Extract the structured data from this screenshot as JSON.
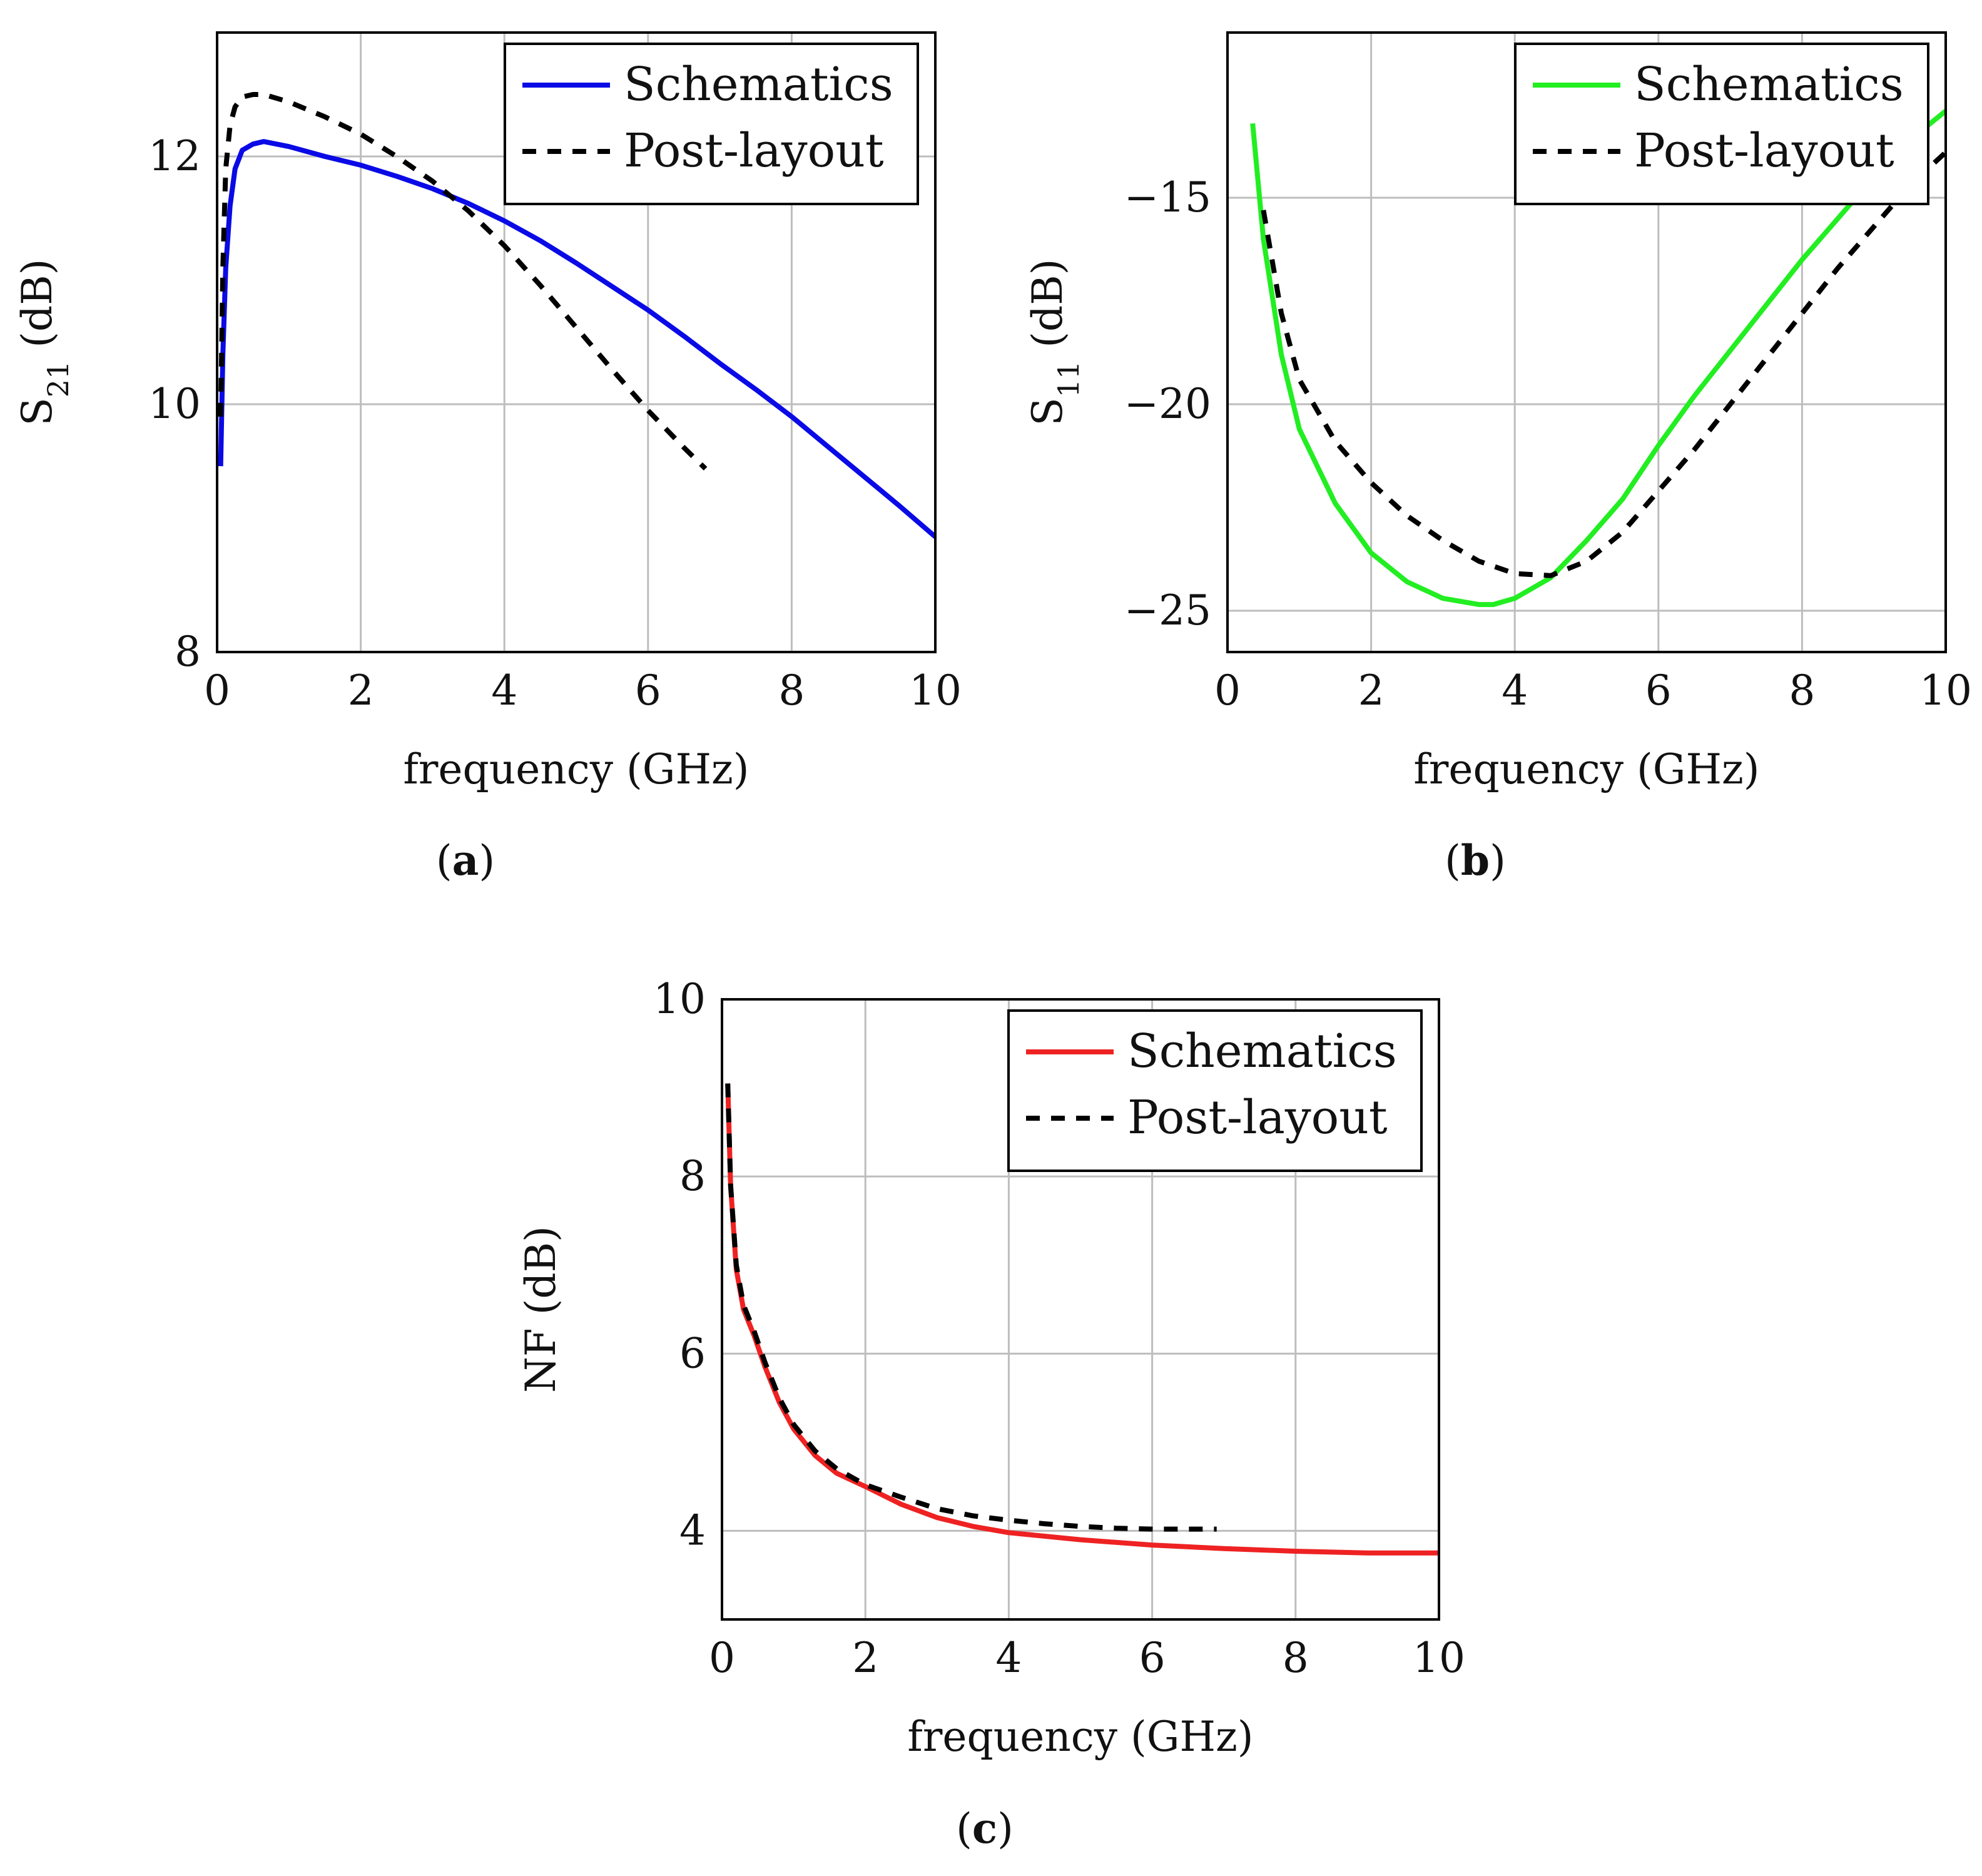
{
  "chart_data": [
    {
      "id": "a",
      "type": "line",
      "caption": "a",
      "xlabel": "frequency (GHz)",
      "ylabel": "S",
      "ylabel_sub": "21",
      "ylabel_unit": "(dB)",
      "xlim": [
        0,
        10
      ],
      "ylim": [
        8,
        13
      ],
      "xticks": [
        0,
        2,
        4,
        6,
        8,
        10
      ],
      "yticks": [
        8,
        10,
        12
      ],
      "grid": true,
      "legend_position": "top-right",
      "series": [
        {
          "name": "Schematics",
          "color": "#0a0ae6",
          "dash": "solid",
          "x": [
            0.05,
            0.08,
            0.12,
            0.18,
            0.25,
            0.35,
            0.5,
            0.65,
            1.0,
            1.5,
            2.0,
            2.5,
            3.0,
            3.5,
            4.0,
            4.5,
            5.0,
            5.5,
            6.0,
            6.5,
            7.0,
            7.5,
            8.0,
            8.5,
            9.0,
            9.5,
            10.0
          ],
          "y": [
            9.5,
            10.4,
            11.1,
            11.6,
            11.9,
            12.05,
            12.1,
            12.12,
            12.08,
            12.0,
            11.93,
            11.84,
            11.74,
            11.62,
            11.48,
            11.32,
            11.14,
            10.95,
            10.76,
            10.55,
            10.33,
            10.12,
            9.9,
            9.66,
            9.42,
            9.18,
            8.93
          ]
        },
        {
          "name": "Post-layout",
          "color": "#000000",
          "dash": "dashed",
          "x": [
            0.05,
            0.08,
            0.12,
            0.18,
            0.25,
            0.35,
            0.5,
            0.65,
            1.0,
            1.5,
            2.0,
            2.5,
            3.0,
            3.5,
            4.0,
            4.5,
            5.0,
            5.5,
            6.0,
            6.5,
            6.8
          ],
          "y": [
            9.9,
            11.1,
            11.9,
            12.25,
            12.4,
            12.48,
            12.5,
            12.5,
            12.44,
            12.32,
            12.18,
            12.0,
            11.8,
            11.56,
            11.28,
            10.96,
            10.62,
            10.28,
            9.95,
            9.65,
            9.48
          ]
        }
      ]
    },
    {
      "id": "b",
      "type": "line",
      "caption": "b",
      "xlabel": "frequency (GHz)",
      "ylabel": "S",
      "ylabel_sub": "11",
      "ylabel_unit": "(dB)",
      "xlim": [
        0,
        10
      ],
      "ylim": [
        -26,
        -11
      ],
      "xticks": [
        0,
        2,
        4,
        6,
        8,
        10
      ],
      "yticks": [
        -25,
        -20,
        -15
      ],
      "grid": true,
      "legend_position": "top-right",
      "series": [
        {
          "name": "Schematics",
          "color": "#22ee22",
          "dash": "solid",
          "x": [
            0.35,
            0.5,
            0.75,
            1.0,
            1.5,
            2.0,
            2.5,
            3.0,
            3.5,
            3.7,
            4.0,
            4.5,
            5.0,
            5.5,
            6.0,
            6.5,
            7.0,
            7.5,
            8.0,
            8.5,
            9.0,
            9.5,
            10.0
          ],
          "y": [
            -13.2,
            -16.0,
            -18.8,
            -20.6,
            -22.4,
            -23.6,
            -24.3,
            -24.7,
            -24.85,
            -24.85,
            -24.7,
            -24.2,
            -23.3,
            -22.3,
            -21.0,
            -19.8,
            -18.7,
            -17.6,
            -16.5,
            -15.5,
            -14.5,
            -13.6,
            -12.9
          ]
        },
        {
          "name": "Post-layout",
          "color": "#000000",
          "dash": "dashed",
          "x": [
            0.5,
            0.75,
            1.0,
            1.5,
            2.0,
            2.5,
            3.0,
            3.5,
            4.0,
            4.5,
            5.0,
            5.5,
            6.0,
            6.5,
            7.0,
            7.5,
            8.0,
            8.5,
            9.0,
            9.5,
            10.0
          ],
          "y": [
            -15.3,
            -17.8,
            -19.4,
            -20.9,
            -21.9,
            -22.7,
            -23.3,
            -23.8,
            -24.1,
            -24.15,
            -23.8,
            -23.1,
            -22.1,
            -21.1,
            -20.0,
            -18.9,
            -17.8,
            -16.7,
            -15.7,
            -14.7,
            -13.9
          ]
        }
      ]
    },
    {
      "id": "c",
      "type": "line",
      "caption": "c",
      "xlabel": "frequency (GHz)",
      "ylabel": "NF",
      "ylabel_sub": "",
      "ylabel_unit": "(dB)",
      "xlim": [
        0,
        10
      ],
      "ylim": [
        3,
        10
      ],
      "xticks": [
        0,
        2,
        4,
        6,
        8,
        10
      ],
      "yticks": [
        4,
        6,
        8,
        10
      ],
      "grid": true,
      "legend_position": "top-right",
      "series": [
        {
          "name": "Schematics",
          "color": "#ee2222",
          "dash": "solid",
          "x": [
            0.08,
            0.12,
            0.2,
            0.3,
            0.45,
            0.6,
            0.8,
            1.0,
            1.3,
            1.6,
            2.0,
            2.5,
            3.0,
            3.5,
            4.0,
            5.0,
            6.0,
            7.0,
            8.0,
            9.0,
            10.0
          ],
          "y": [
            9.05,
            7.9,
            6.95,
            6.5,
            6.2,
            5.85,
            5.45,
            5.15,
            4.85,
            4.65,
            4.5,
            4.3,
            4.15,
            4.05,
            3.98,
            3.9,
            3.84,
            3.8,
            3.77,
            3.75,
            3.75
          ]
        },
        {
          "name": "Post-layout",
          "color": "#000000",
          "dash": "dashed",
          "x": [
            0.08,
            0.12,
            0.2,
            0.3,
            0.45,
            0.6,
            0.8,
            1.0,
            1.3,
            1.6,
            2.0,
            2.5,
            3.0,
            3.5,
            4.0,
            4.5,
            5.0,
            5.5,
            6.0,
            6.5,
            6.9
          ],
          "y": [
            9.05,
            7.9,
            7.0,
            6.55,
            6.25,
            5.9,
            5.5,
            5.2,
            4.9,
            4.7,
            4.52,
            4.38,
            4.25,
            4.17,
            4.12,
            4.08,
            4.05,
            4.03,
            4.02,
            4.02,
            4.02
          ]
        }
      ]
    }
  ]
}
